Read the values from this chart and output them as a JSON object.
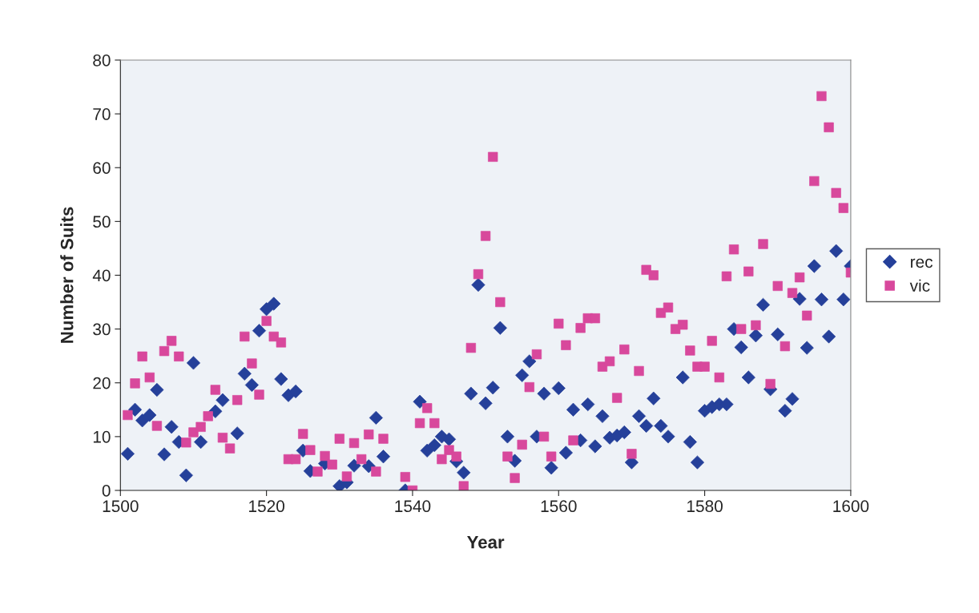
{
  "chart_data": {
    "type": "scatter",
    "xlabel": "Year",
    "ylabel": "Number of Suits",
    "x": [
      1501,
      1502,
      1503,
      1504,
      1505,
      1506,
      1507,
      1508,
      1509,
      1510,
      1511,
      1512,
      1513,
      1514,
      1515,
      1516,
      1517,
      1518,
      1519,
      1520,
      1521,
      1522,
      1523,
      1524,
      1525,
      1526,
      1527,
      1528,
      1529,
      1530,
      1531,
      1532,
      1533,
      1534,
      1535,
      1536,
      1537,
      1538,
      1539,
      1540,
      1541,
      1542,
      1543,
      1544,
      1545,
      1546,
      1547,
      1548,
      1549,
      1550,
      1551,
      1552,
      1553,
      1554,
      1555,
      1556,
      1557,
      1558,
      1559,
      1560,
      1561,
      1562,
      1563,
      1564,
      1565,
      1566,
      1567,
      1568,
      1569,
      1570,
      1571,
      1572,
      1573,
      1574,
      1575,
      1576,
      1577,
      1578,
      1579,
      1580,
      1581,
      1582,
      1583,
      1584,
      1585,
      1586,
      1587,
      1588,
      1589,
      1590,
      1591,
      1592,
      1593,
      1594,
      1595,
      1596,
      1597,
      1598,
      1599,
      1600
    ],
    "series": [
      {
        "name": "rec",
        "color": "#25409a",
        "marker": "diamond",
        "values": [
          6.8,
          15,
          13,
          14,
          18.7,
          6.7,
          11.8,
          9,
          2.8,
          23.7,
          9,
          null,
          14.7,
          16.8,
          null,
          10.6,
          21.7,
          19.6,
          29.7,
          33.7,
          34.7,
          20.7,
          17.7,
          18.4,
          7.4,
          3.6,
          null,
          5,
          null,
          0.8,
          1.5,
          4.6,
          null,
          4.5,
          13.5,
          6.3,
          null,
          null,
          0,
          null,
          16.5,
          7.4,
          8.4,
          10,
          9.5,
          5.4,
          3.3,
          18,
          38.2,
          16.2,
          19.1,
          30.2,
          10,
          5.5,
          21.4,
          24,
          10,
          18,
          4.2,
          19,
          7,
          15,
          9.3,
          16,
          8.2,
          13.8,
          9.8,
          10.2,
          10.8,
          5.2,
          13.8,
          12,
          17.1,
          12,
          10,
          null,
          21,
          9,
          5.2,
          14.8,
          15.5,
          16,
          16,
          30,
          26.6,
          21,
          28.8,
          34.5,
          18.8,
          29,
          14.8,
          17,
          35.6,
          26.5,
          41.7,
          35.5,
          28.6,
          44.5,
          35.5,
          41.7
        ]
      },
      {
        "name": "vic",
        "color": "#d8489c",
        "marker": "square",
        "values": [
          14,
          19.9,
          24.9,
          21,
          12,
          25.9,
          27.8,
          24.9,
          8.9,
          10.8,
          11.8,
          13.8,
          18.7,
          9.8,
          7.8,
          16.8,
          28.6,
          23.6,
          17.8,
          31.5,
          28.6,
          27.5,
          5.8,
          5.8,
          10.5,
          7.5,
          3.5,
          6.4,
          4.8,
          9.6,
          2.6,
          8.8,
          5.8,
          10.4,
          3.5,
          9.6,
          null,
          null,
          2.5,
          0,
          12.5,
          15.3,
          12.5,
          5.8,
          7.5,
          6.3,
          0.8,
          26.5,
          40.2,
          47.3,
          62,
          35,
          6.3,
          2.3,
          8.5,
          19.2,
          25.3,
          10,
          6.3,
          31,
          27,
          9.3,
          30.2,
          32,
          32,
          23,
          24,
          17.2,
          26.2,
          6.8,
          22.2,
          41,
          40,
          33,
          34,
          30,
          30.8,
          26,
          23,
          23,
          27.8,
          21,
          39.8,
          44.8,
          30,
          40.7,
          30.7,
          45.8,
          19.8,
          38,
          26.8,
          36.7,
          39.6,
          32.5,
          57.5,
          73.3,
          67.5,
          55.3,
          52.5,
          40.5
        ]
      }
    ],
    "xlim": [
      1500,
      1600
    ],
    "xticks": [
      1500,
      1520,
      1540,
      1560,
      1580,
      1600
    ],
    "ylim": [
      0,
      80
    ],
    "yticks": [
      0,
      10,
      20,
      30,
      40,
      50,
      60,
      70,
      80
    ],
    "grid": false,
    "legend": "right"
  }
}
